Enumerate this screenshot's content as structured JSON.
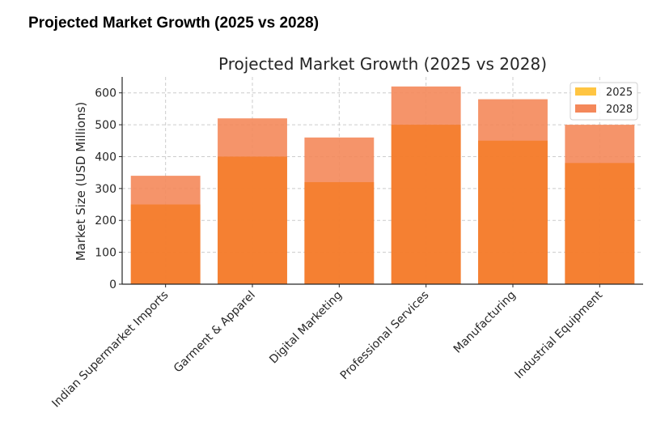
{
  "page": {
    "title": "Projected Market Growth (2025 vs 2028)"
  },
  "chart_data": {
    "type": "bar",
    "title": "Projected Market Growth (2025 vs 2028)",
    "xlabel": "",
    "ylabel": "Market Size (USD Millions)",
    "ylim": [
      0,
      650
    ],
    "yticks": [
      0,
      100,
      200,
      300,
      400,
      500,
      600
    ],
    "grid": true,
    "legend_position": "top-right",
    "categories": [
      "Indian Supermarket Imports",
      "Garment & Apparel",
      "Digital Marketing",
      "Professional Services",
      "Manufacturing",
      "Industrial Equipment"
    ],
    "series": [
      {
        "name": "2025",
        "color": "#FFC542",
        "values": [
          250,
          400,
          320,
          500,
          450,
          380
        ]
      },
      {
        "name": "2028",
        "color": "#F4885A",
        "values": [
          340,
          520,
          460,
          620,
          580,
          500
        ]
      }
    ]
  }
}
